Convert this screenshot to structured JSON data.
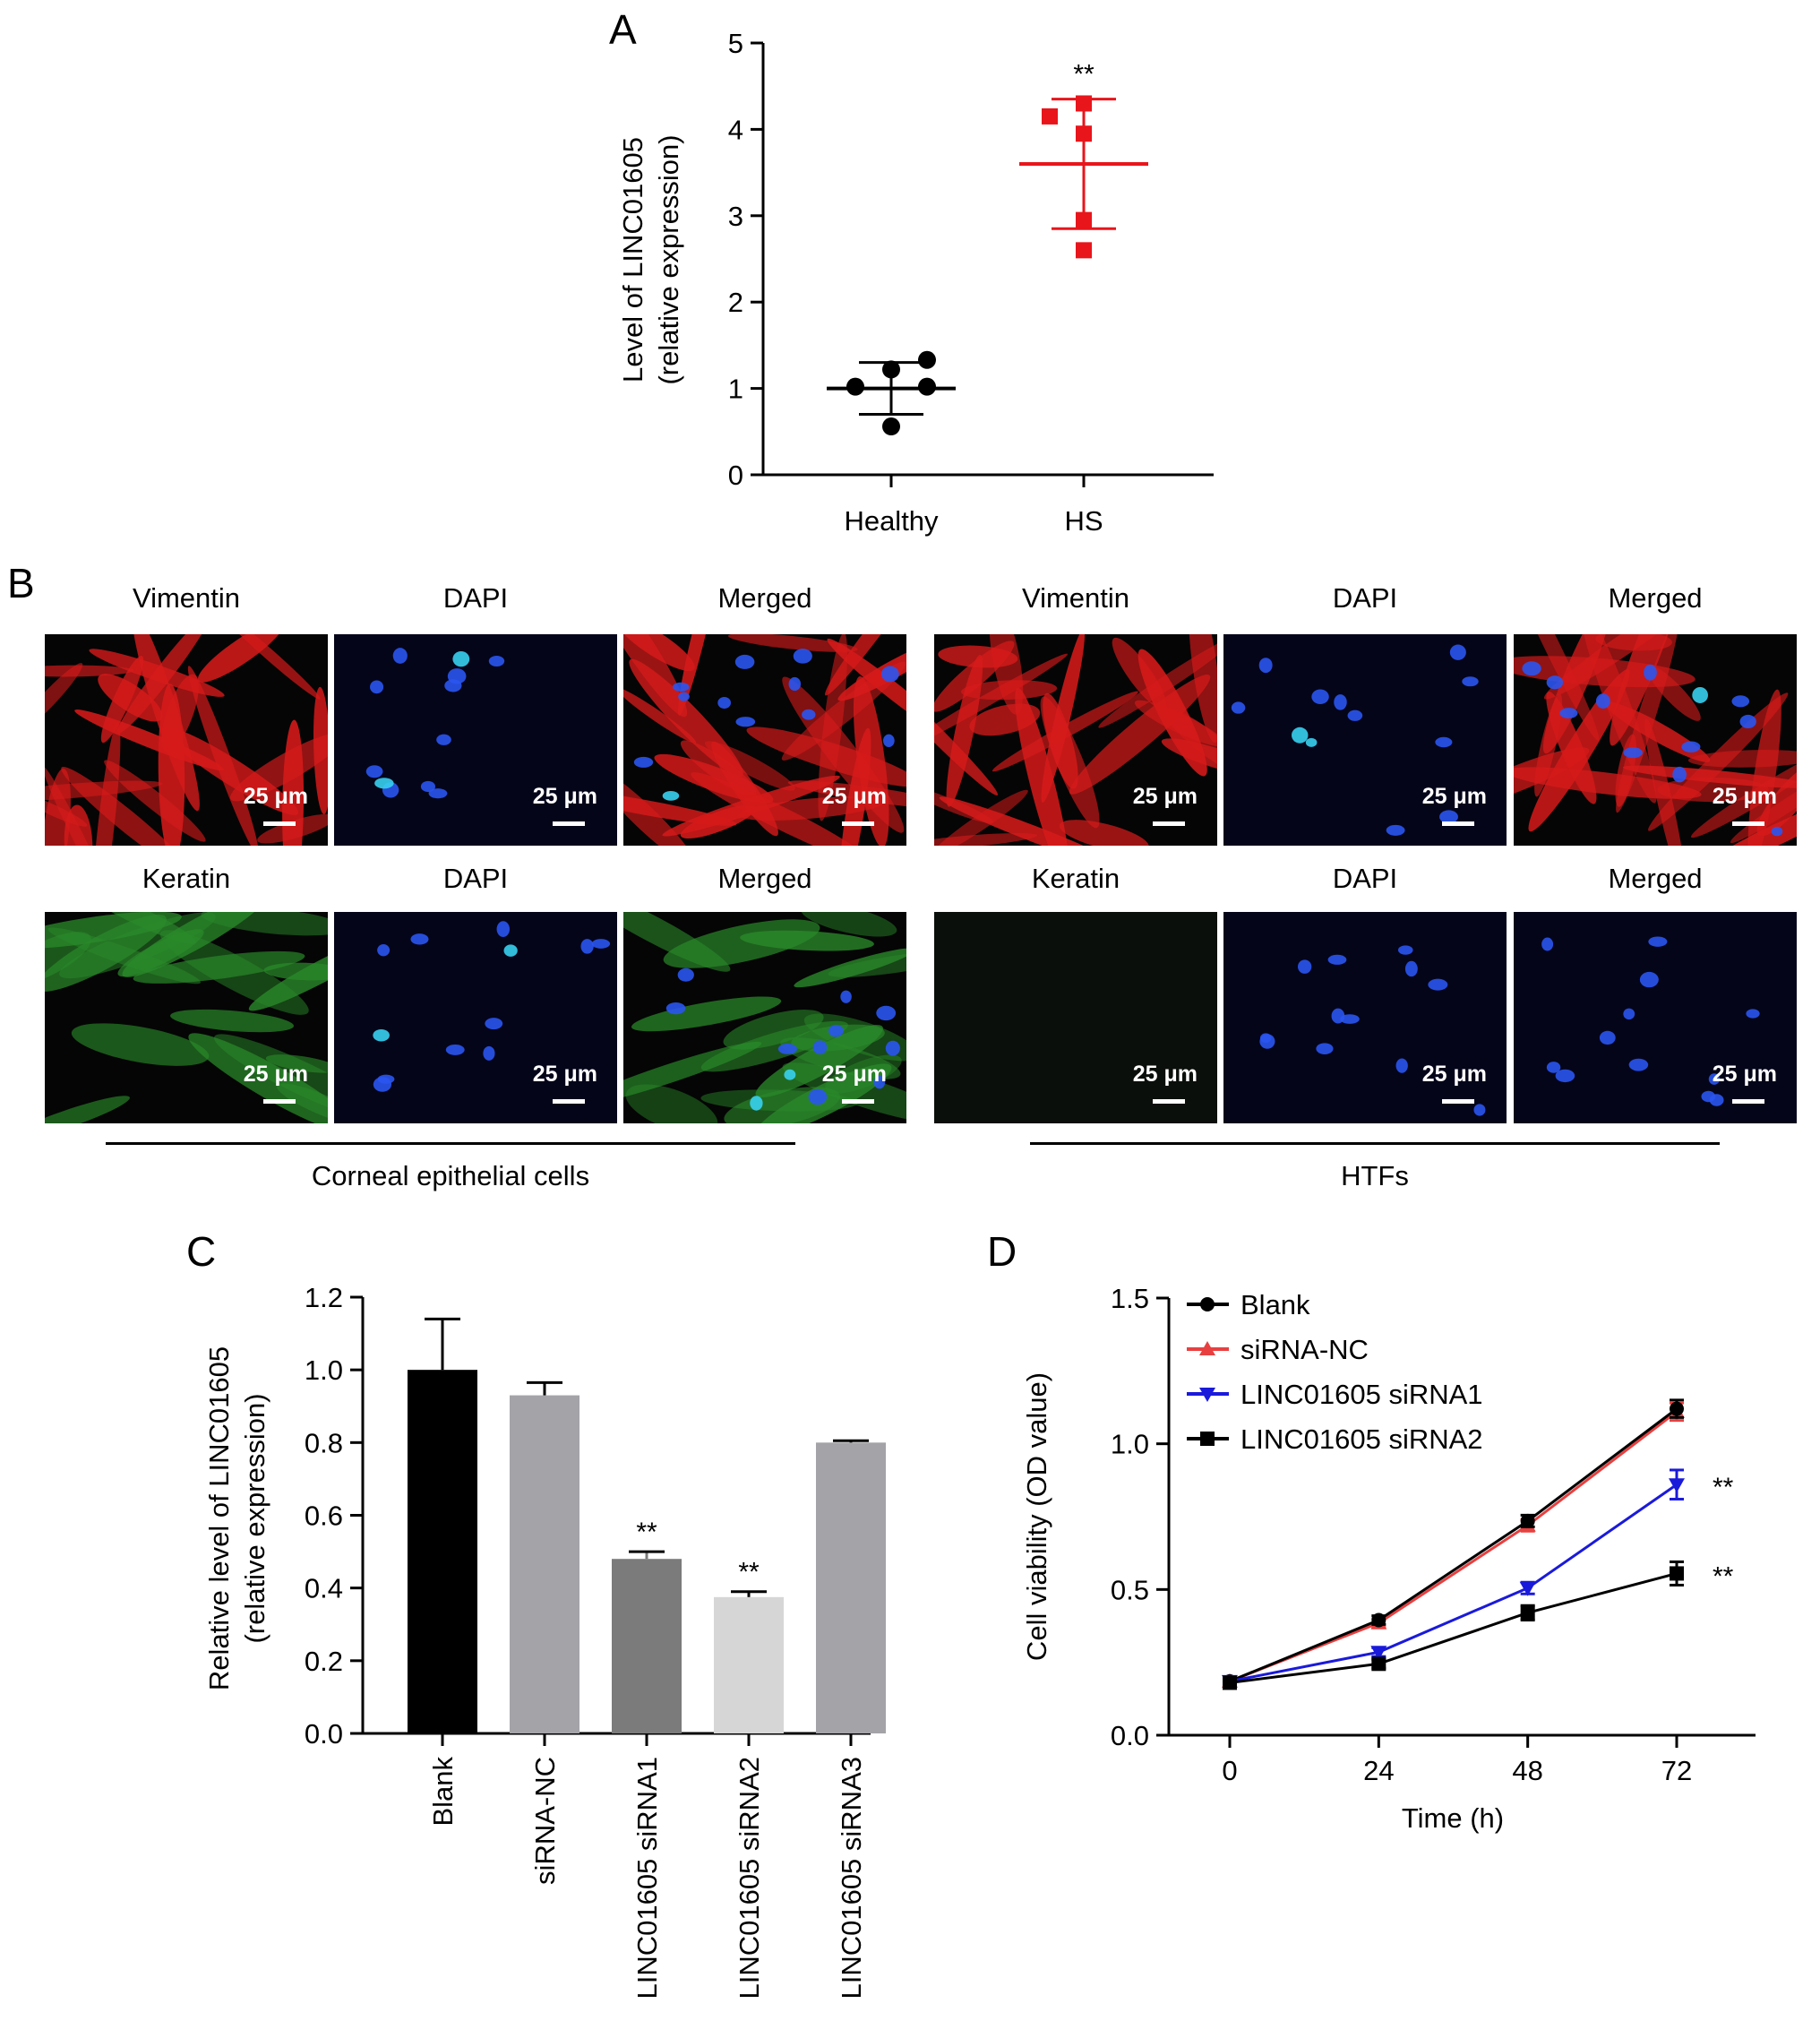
{
  "panels": {
    "a": "A",
    "b": "B",
    "c": "C",
    "d": "D"
  },
  "chart_data": [
    {
      "id": "A",
      "type": "scatter",
      "ylabel": "Level of LINC01605",
      "ylabel2": "(relative expression)",
      "ylim": [
        0,
        5
      ],
      "yticks": [
        0,
        1,
        2,
        3,
        4,
        5
      ],
      "categories": [
        "Healthy",
        "HS"
      ],
      "series": [
        {
          "category": "Healthy",
          "points": [
            1.33,
            1.22,
            1.02,
            1.02,
            0.56
          ],
          "mean": 1.0,
          "sd_low": 0.7,
          "sd_high": 1.3,
          "color": "#000000",
          "marker": "circle",
          "annotation": ""
        },
        {
          "category": "HS",
          "points": [
            4.3,
            4.15,
            3.95,
            2.95,
            2.6
          ],
          "mean": 3.6,
          "sd_low": 2.85,
          "sd_high": 4.35,
          "color": "#e8151b",
          "marker": "square",
          "annotation": "**"
        }
      ]
    },
    {
      "id": "C",
      "type": "bar",
      "ylabel": "Relative level of LINC01605",
      "ylabel2": "(relative expression)",
      "ylim": [
        0,
        1.2
      ],
      "yticks": [
        "0.0",
        "0.2",
        "0.4",
        "0.6",
        "0.8",
        "1.0",
        "1.2"
      ],
      "categories": [
        "Blank",
        "siRNA-NC",
        "LINC01605 siRNA1",
        "LINC01605 siRNA2",
        "LINC01605 siRNA3"
      ],
      "values": [
        1.0,
        0.93,
        0.48,
        0.375,
        0.8
      ],
      "errors": [
        0.14,
        0.035,
        0.02,
        0.015,
        0.005
      ],
      "colors": [
        "#000000",
        "#a4a3a8",
        "#7b7b7b",
        "#d6d6d6",
        "#a4a3a8"
      ],
      "annotations": [
        "",
        "",
        "**",
        "**",
        ""
      ]
    },
    {
      "id": "D",
      "type": "line",
      "xlabel": "Time (h)",
      "ylabel": "Cell viability (OD value)",
      "ylim": [
        0,
        1.5
      ],
      "yticks": [
        "0.0",
        "0.5",
        "1.0",
        "1.5"
      ],
      "x": [
        0,
        24,
        48,
        72
      ],
      "legend_position": "top-left",
      "series": [
        {
          "name": "Blank",
          "values": [
            0.185,
            0.395,
            0.735,
            1.12
          ],
          "errors": [
            0.015,
            0.015,
            0.02,
            0.03
          ],
          "color": "#000000",
          "marker": "circle"
        },
        {
          "name": "siRNA-NC",
          "values": [
            0.185,
            0.385,
            0.72,
            1.11
          ],
          "errors": [
            0.015,
            0.015,
            0.02,
            0.03
          ],
          "color": "#e84040",
          "marker": "triangle-up"
        },
        {
          "name": "LINC01605 siRNA1",
          "values": [
            0.185,
            0.285,
            0.505,
            0.86
          ],
          "errors": [
            0.015,
            0.015,
            0.02,
            0.05
          ],
          "color": "#1a1adb",
          "marker": "triangle-down",
          "annotation": "**"
        },
        {
          "name": "LINC01605 siRNA2",
          "values": [
            0.18,
            0.245,
            0.42,
            0.555
          ],
          "errors": [
            0.015,
            0.015,
            0.025,
            0.04
          ],
          "color": "#000000",
          "marker": "square",
          "annotation": "**"
        }
      ]
    }
  ],
  "micrographs": {
    "headers_row1": [
      "Vimentin",
      "DAPI",
      "Merged",
      "Vimentin",
      "DAPI",
      "Merged"
    ],
    "headers_row2": [
      "Keratin",
      "DAPI",
      "Merged",
      "Keratin",
      "DAPI",
      "Merged"
    ],
    "scale_label": "25 μm",
    "group_left": "Corneal epithelial cells",
    "group_right": "HTFs"
  }
}
